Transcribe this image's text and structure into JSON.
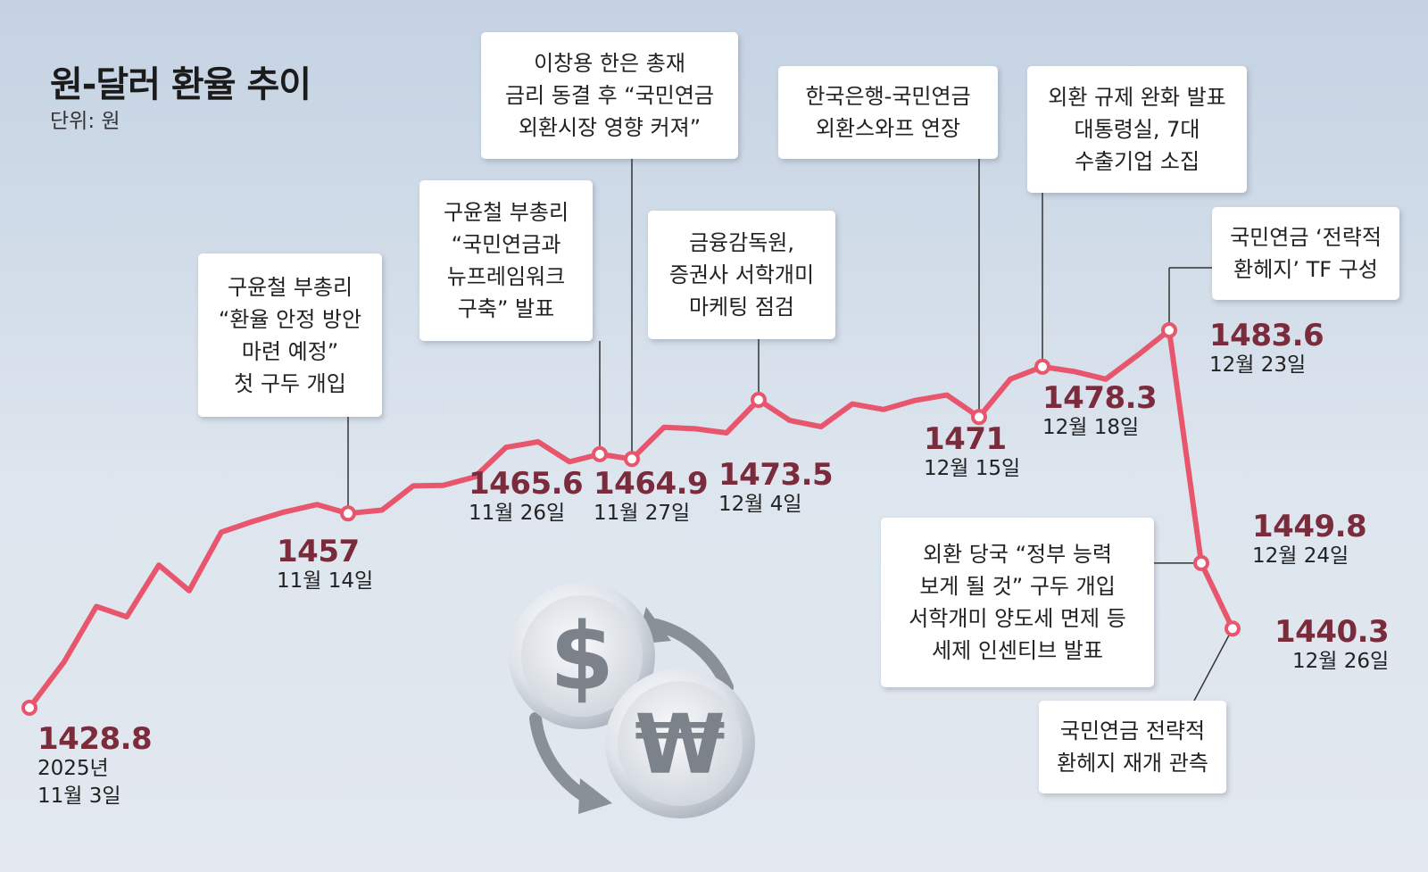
{
  "title": "원-달러 환율 추이",
  "unit": "단위: 원",
  "colors": {
    "line": "#e8566e",
    "value_text": "#7a2b3c",
    "annotation_bg": "#ffffff",
    "connector": "#333333"
  },
  "icons": [
    "dollar-coin-icon",
    "won-coin-icon",
    "exchange-arrows-icon"
  ],
  "chart_data": {
    "type": "line",
    "title": "원-달러 환율 추이",
    "ylabel": "",
    "xlabel": "",
    "ylim": [
      1425,
      1490
    ],
    "series": [
      {
        "values": [
          1428.8,
          1435.5,
          1443.5,
          1442,
          1449.5,
          1445.8,
          1454.3,
          1455.8,
          1457.2,
          1458.3,
          1457,
          1457.5,
          1461,
          1461.1,
          1462.3,
          1466.6,
          1467.4,
          1464.5,
          1465.6,
          1464.9,
          1469.5,
          1469.3,
          1468.7,
          1473.5,
          1470.5,
          1469.6,
          1472.9,
          1472.1,
          1473.4,
          1474.2,
          1471,
          1476.5,
          1478.3,
          1477.6,
          1476.5,
          1480,
          1483.6,
          1449.8,
          1440.3
        ]
      }
    ],
    "highlights": [
      {
        "id": "nov3",
        "index": 0,
        "value": "1428.8",
        "date_lines": [
          "2025년",
          "11월 3일"
        ]
      },
      {
        "id": "nov14",
        "index": 10,
        "value": "1457",
        "date_lines": [
          "11월 14일"
        ]
      },
      {
        "id": "nov26",
        "index": 18,
        "value": "1465.6",
        "date_lines": [
          "11월 26일"
        ]
      },
      {
        "id": "nov27",
        "index": 19,
        "value": "1464.9",
        "date_lines": [
          "11월 27일"
        ]
      },
      {
        "id": "dec4",
        "index": 23,
        "value": "1473.5",
        "date_lines": [
          "12월 4일"
        ]
      },
      {
        "id": "dec15",
        "index": 30,
        "value": "1471",
        "date_lines": [
          "12월 15일"
        ]
      },
      {
        "id": "dec18",
        "index": 32,
        "value": "1478.3",
        "date_lines": [
          "12월 18일"
        ]
      },
      {
        "id": "dec23",
        "index": 36,
        "value": "1483.6",
        "date_lines": [
          "12월 23일"
        ]
      },
      {
        "id": "dec24",
        "index": 37,
        "value": "1449.8",
        "date_lines": [
          "12월 24일"
        ]
      },
      {
        "id": "dec26",
        "index": 38,
        "value": "1440.3",
        "date_lines": [
          "12월 26일"
        ]
      }
    ],
    "annotations": [
      {
        "id": "nov14",
        "lines": [
          "구윤철 부총리",
          "“환율 안정 방안",
          "마련 예정”",
          "첫 구두 개입"
        ]
      },
      {
        "id": "nov26",
        "lines": [
          "구윤철 부총리",
          "“국민연금과",
          "뉴프레임워크",
          "구축” 발표"
        ]
      },
      {
        "id": "nov27",
        "lines": [
          "이창용 한은 총재",
          "금리 동결 후 “국민연금",
          "외환시장 영향 커져”"
        ]
      },
      {
        "id": "dec4",
        "lines": [
          "금융감독원,",
          "증권사 서학개미",
          "마케팅 점검"
        ]
      },
      {
        "id": "dec15",
        "lines": [
          "한국은행-국민연금",
          "외환스와프 연장"
        ]
      },
      {
        "id": "dec18",
        "lines": [
          "외환 규제 완화 발표",
          "대통령실, 7대",
          "수출기업 소집"
        ]
      },
      {
        "id": "dec23",
        "lines": [
          "국민연금 ‘전략적",
          "환헤지’ TF 구성"
        ]
      },
      {
        "id": "dec24",
        "lines": [
          "외환 당국 “정부 능력",
          "보게 될 것” 구두 개입",
          "서학개미 양도세 면제 등",
          "세제 인센티브 발표"
        ]
      },
      {
        "id": "dec26",
        "lines": [
          "국민연금 전략적",
          "환헤지 재개 관측"
        ]
      }
    ]
  }
}
